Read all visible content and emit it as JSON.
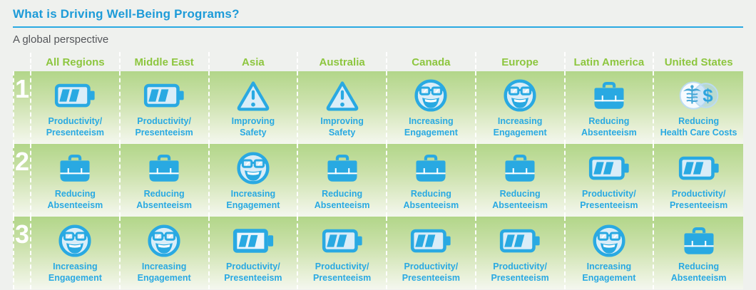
{
  "header": {
    "title": "What is Driving Well-Being Programs?",
    "subtitle": "A global perspective"
  },
  "colors": {
    "title_blue": "#1d9bd8",
    "icon_blue": "#29a9e2",
    "icon_pale_fill": "#daedf8",
    "region_header_green": "#8dc63f",
    "band_gradient_top": "#b2d689",
    "band_gradient_bottom": "#f4f7ef",
    "page_background": "#eff1ee",
    "subtitle_gray": "#54565a",
    "rank_number_white": "#ffffff"
  },
  "icons": {
    "battery-icon": "battery with two charge bars (productivity/presenteeism)",
    "battery-solid-icon": "solid battery with two charge bars (productivity/presenteeism)",
    "warning-triangle-icon": "warning triangle with exclamation mark (safety)",
    "smiley-glasses-icon": "smiling face wearing glasses (engagement)",
    "briefcase-icon": "briefcase (absenteeism)",
    "healthcare-costs-icon": "overlapping circles with caduceus and dollar sign (health care costs)",
    "dollar_glyph": "$"
  },
  "table": {
    "regions": [
      "All Regions",
      "Middle East",
      "Asia",
      "Australia",
      "Canada",
      "Europe",
      "Latin America",
      "United States"
    ],
    "rows": [
      {
        "rank": "1",
        "cells": [
          {
            "icon": "battery",
            "label": "Productivity/\nPresenteeism"
          },
          {
            "icon": "battery",
            "label": "Productivity/\nPresenteeism"
          },
          {
            "icon": "warning-triangle",
            "label": "Improving\nSafety"
          },
          {
            "icon": "warning-triangle",
            "label": "Improving\nSafety"
          },
          {
            "icon": "smiley-glasses",
            "label": "Increasing\nEngagement"
          },
          {
            "icon": "smiley-glasses",
            "label": "Increasing\nEngagement"
          },
          {
            "icon": "briefcase",
            "label": "Reducing\nAbsenteeism"
          },
          {
            "icon": "healthcare-costs",
            "label": "Reducing\nHealth Care Costs"
          }
        ]
      },
      {
        "rank": "2",
        "cells": [
          {
            "icon": "briefcase",
            "label": "Reducing\nAbsenteeism"
          },
          {
            "icon": "briefcase",
            "label": "Reducing\nAbsenteeism"
          },
          {
            "icon": "smiley-glasses",
            "label": "Increasing\nEngagement"
          },
          {
            "icon": "briefcase",
            "label": "Reducing\nAbsenteeism"
          },
          {
            "icon": "briefcase",
            "label": "Reducing\nAbsenteeism"
          },
          {
            "icon": "briefcase",
            "label": "Reducing\nAbsenteeism"
          },
          {
            "icon": "battery",
            "label": "Productivity/\nPresenteeism"
          },
          {
            "icon": "battery",
            "label": "Productivity/\nPresenteeism"
          }
        ]
      },
      {
        "rank": "3",
        "cells": [
          {
            "icon": "smiley-glasses",
            "label": "Increasing\nEngagement"
          },
          {
            "icon": "smiley-glasses",
            "label": "Increasing\nEngagement"
          },
          {
            "icon": "battery-solid",
            "label": "Productivity/\nPresenteeism"
          },
          {
            "icon": "battery",
            "label": "Productivity/\nPresenteeism"
          },
          {
            "icon": "battery",
            "label": "Productivity/\nPresenteeism"
          },
          {
            "icon": "battery",
            "label": "Productivity/\nPresenteeism"
          },
          {
            "icon": "smiley-glasses",
            "label": "Increasing\nEngagement"
          },
          {
            "icon": "briefcase",
            "label": "Reducing\nAbsenteeism"
          }
        ]
      }
    ]
  },
  "chart_data": {
    "type": "table",
    "title": "What is Driving Well-Being Programs?",
    "subtitle": "A global perspective",
    "columns": [
      "All Regions",
      "Middle East",
      "Asia",
      "Australia",
      "Canada",
      "Europe",
      "Latin America",
      "United States"
    ],
    "rows": [
      {
        "rank": 1,
        "values": [
          "Productivity/Presenteeism",
          "Productivity/Presenteeism",
          "Improving Safety",
          "Improving Safety",
          "Increasing Engagement",
          "Increasing Engagement",
          "Reducing Absenteeism",
          "Reducing Health Care Costs"
        ]
      },
      {
        "rank": 2,
        "values": [
          "Reducing Absenteeism",
          "Reducing Absenteeism",
          "Increasing Engagement",
          "Reducing Absenteeism",
          "Reducing Absenteeism",
          "Reducing Absenteeism",
          "Productivity/Presenteeism",
          "Productivity/Presenteeism"
        ]
      },
      {
        "rank": 3,
        "values": [
          "Increasing Engagement",
          "Increasing Engagement",
          "Productivity/Presenteeism",
          "Productivity/Presenteeism",
          "Productivity/Presenteeism",
          "Productivity/Presenteeism",
          "Increasing Engagement",
          "Reducing Absenteeism"
        ]
      }
    ],
    "legend_position": "none",
    "grid": "dashed white column separators"
  }
}
